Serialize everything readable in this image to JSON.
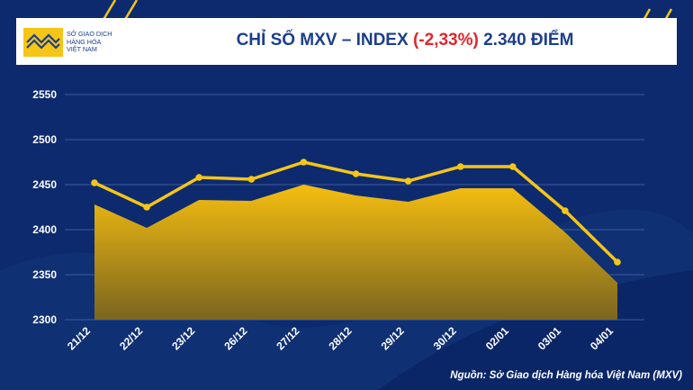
{
  "logo": {
    "lines": [
      "SỞ GIAO DỊCH",
      "HÀNG HÓA",
      "VIỆT NAM"
    ],
    "colors": {
      "gold": "#f5c518",
      "blue": "#1b3f8c"
    }
  },
  "title": {
    "prefix": "CHỈ SỐ MXV – INDEX",
    "change": "(-2,33%)",
    "value": "2.340 ĐIỂM"
  },
  "source": "Nguồn: Sở Giao dịch Hàng hóa Việt Nam (MXV)",
  "chart_data": {
    "type": "line",
    "title": "",
    "categories": [
      "21/12",
      "22/12",
      "23/12",
      "26/12",
      "27/12",
      "28/12",
      "29/12",
      "30/12",
      "02/01",
      "03/01",
      "04/01"
    ],
    "series": [
      {
        "values": [
          2452,
          2425,
          2458,
          2456,
          2475,
          2462,
          2454,
          2470,
          2470,
          2421,
          2364
        ],
        "style": "line",
        "color": "#f5c518"
      },
      {
        "values": [
          2428,
          2402,
          2433,
          2432,
          2450,
          2438,
          2431,
          2446,
          2446,
          2397,
          2341
        ],
        "style": "area",
        "color": "#e6a800"
      }
    ],
    "yticks": [
      2300,
      2350,
      2400,
      2450,
      2500,
      2550
    ],
    "ylim": [
      2300,
      2550
    ],
    "grid": true,
    "colors": {
      "background": "#0d2a6e",
      "grid": "#3f5a9c",
      "text": "#ffffff"
    }
  }
}
